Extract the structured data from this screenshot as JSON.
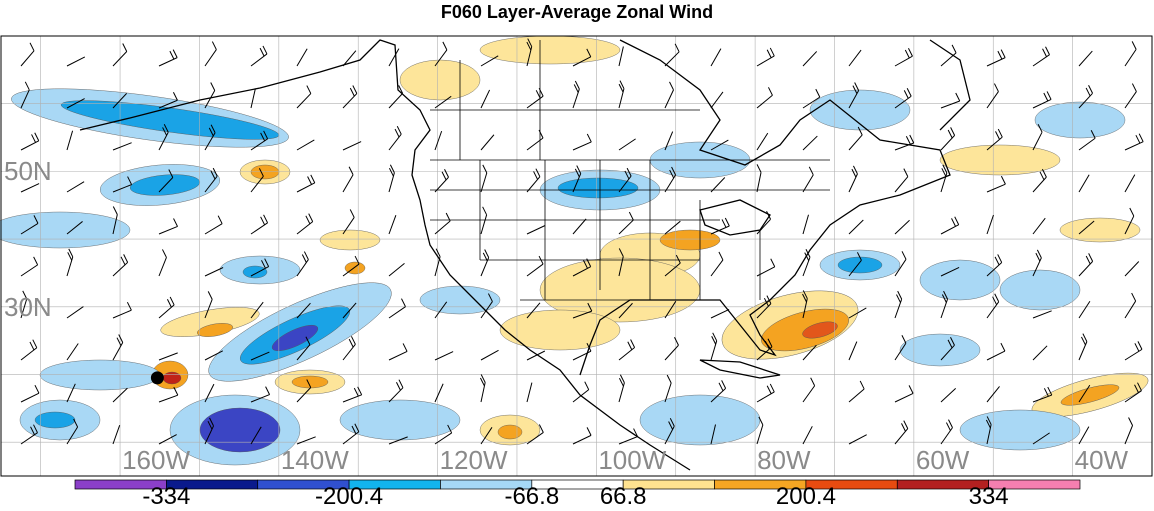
{
  "title": "F060 Layer-Average Zonal Wind",
  "lat_labels": [
    {
      "text": "50N",
      "lat": 50
    },
    {
      "text": "30N",
      "lat": 30
    }
  ],
  "lon_labels": [
    {
      "text": "160W",
      "lon": -160
    },
    {
      "text": "140W",
      "lon": -140
    },
    {
      "text": "120W",
      "lon": -120
    },
    {
      "text": "100W",
      "lon": -100
    },
    {
      "text": "80W",
      "lon": -80
    },
    {
      "text": "60W",
      "lon": -60
    },
    {
      "text": "40W",
      "lon": -40
    }
  ],
  "colorbar": {
    "colors": [
      "#8b3fc9",
      "#0a1a8c",
      "#3050d0",
      "#12b4ee",
      "#a6d8f6",
      "#ffffff",
      "#ffe390",
      "#f5a623",
      "#e84b10",
      "#b32020",
      "#f57fb0"
    ],
    "labels": [
      "-334",
      "-200.4",
      "-66.8",
      "66.8",
      "200.4",
      "334"
    ]
  },
  "legend_colors": {
    "strong_neg": "#3b45c4",
    "neg": "#1aa3e6",
    "light_neg": "#a9d8f5",
    "light_pos": "#fde59a",
    "pos": "#f4a321",
    "strong_pos": "#e2561b",
    "max_pos": "#c02318"
  },
  "map_data": {
    "projection": "lat-lon",
    "lon_range": [
      -175,
      -30
    ],
    "lat_range": [
      5,
      70
    ],
    "grid_lon_step": 10,
    "grid_lat_step": 10,
    "station_marker": {
      "lon": -155.3,
      "lat": 19.5,
      "icon": "black-dot"
    }
  }
}
